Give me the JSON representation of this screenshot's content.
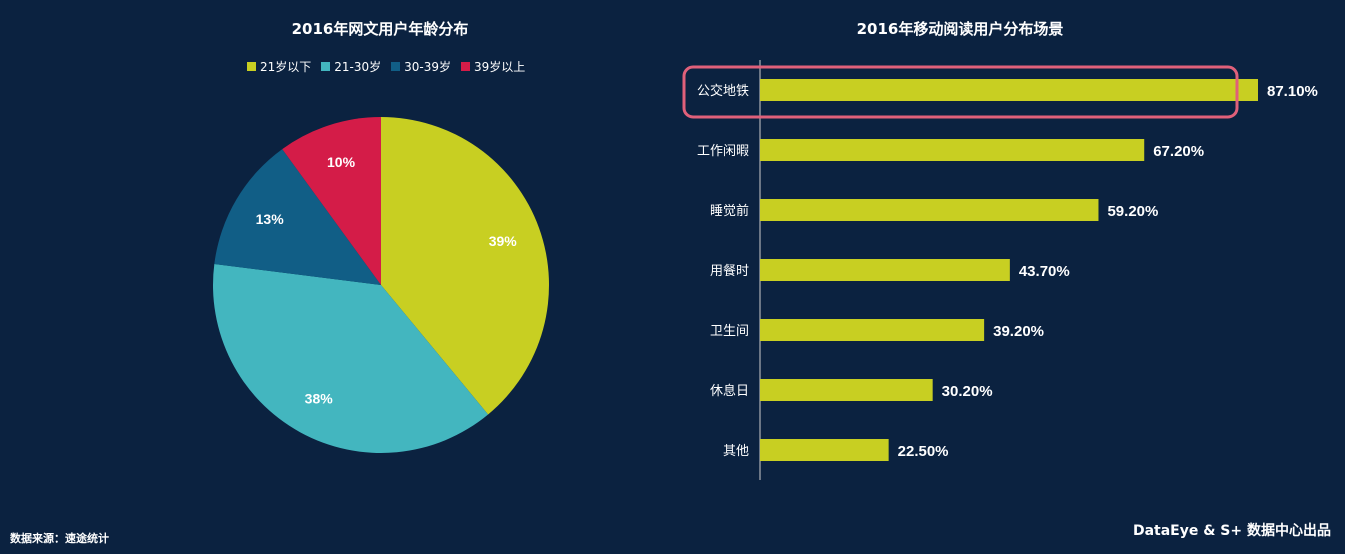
{
  "colors": {
    "background": "#0b2240",
    "highlight": "#e0607a",
    "bar": "#c8cf22",
    "axis": "#cccccc"
  },
  "legend": [
    {
      "label": "21岁以下",
      "color": "#c8cf22"
    },
    {
      "label": "21-30岁",
      "color": "#43b6bf"
    },
    {
      "label": "30-39岁",
      "color": "#115e86"
    },
    {
      "label": "39岁以上",
      "color": "#d41c48"
    }
  ],
  "chart_data": [
    {
      "type": "pie",
      "title": "2016年网文用户年龄分布",
      "categories": [
        "21岁以下",
        "21-30岁",
        "30-39岁",
        "39岁以上"
      ],
      "values": [
        39,
        38,
        13,
        10
      ],
      "labels": [
        "39%",
        "38%",
        "13%",
        "10%"
      ],
      "colors": [
        "#c8cf22",
        "#43b6bf",
        "#115e86",
        "#d41c48"
      ],
      "legend_position": "top"
    },
    {
      "type": "bar",
      "orientation": "horizontal",
      "title": "2016年移动阅读用户分布场景",
      "categories": [
        "公交地铁",
        "工作闲暇",
        "睡觉前",
        "用餐时",
        "卫生间",
        "休息日",
        "其他"
      ],
      "values": [
        87.1,
        67.2,
        59.2,
        43.7,
        39.2,
        30.2,
        22.5
      ],
      "labels": [
        "87.10%",
        "67.20%",
        "59.20%",
        "43.70%",
        "39.20%",
        "30.20%",
        "22.50%"
      ],
      "xlim": [
        0,
        100
      ],
      "highlighted_category": "公交地铁"
    }
  ],
  "footer": {
    "source": "数据来源：速途统计",
    "credit": "DataEye & S+ 数据中心出品"
  }
}
